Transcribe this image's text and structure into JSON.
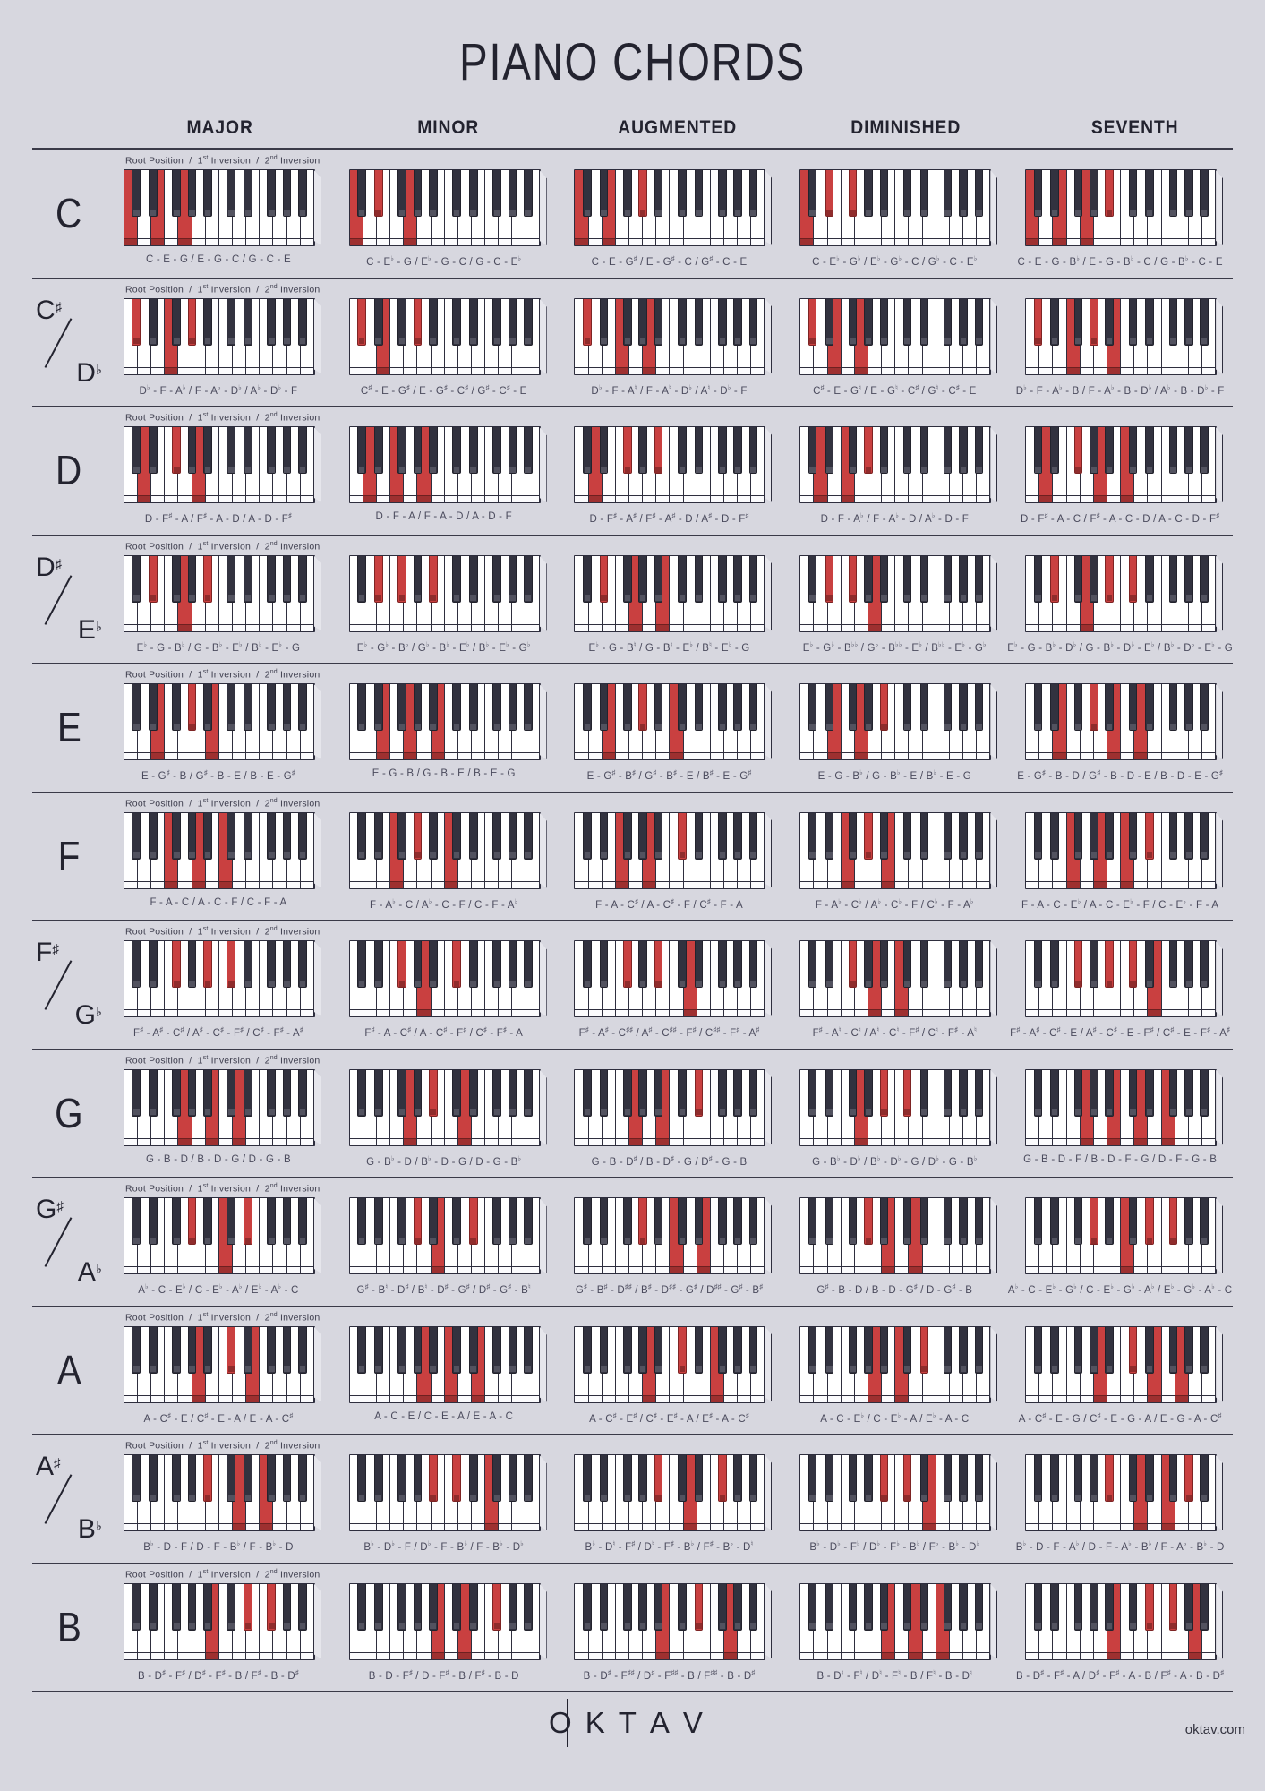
{
  "title": "PIANO CHORDS",
  "columns": [
    "MAJOR",
    "MINOR",
    "AUGMENTED",
    "DIMINISHED",
    "SEVENTH"
  ],
  "inversion_legend": [
    "Root Position",
    "1st Inversion",
    "2nd Inversion"
  ],
  "footer": {
    "logo": "OKTAV",
    "site": "oktav.com"
  },
  "colors": {
    "background": "#d7d7df",
    "ink": "#2d2d3c",
    "key_red": "#c94040",
    "key_red_dark": "#9e3030",
    "black_key": "#32323f",
    "label_text": "#4a4a5c"
  },
  "keyboard": {
    "white_keys": 14,
    "start_note": "C",
    "octaves": 2
  },
  "rows": [
    {
      "id": "C",
      "name_top": "C",
      "name_bottom": "",
      "cells": [
        {
          "type": "major",
          "label": "C - E - G / E - G - C / G - C - E",
          "keys": [
            "C1",
            "E1",
            "G1"
          ]
        },
        {
          "type": "minor",
          "label": "C - E♭ - G / E♭ - G - C / G - C - E♭",
          "keys": [
            "C1",
            "D#1",
            "G1"
          ]
        },
        {
          "type": "augmented",
          "label": "C - E - G♯ / E - G♯ - C / G♯ - C - E",
          "keys": [
            "C1",
            "E1",
            "G#1"
          ]
        },
        {
          "type": "diminished",
          "label": "C - E♭ - G♭ / E♭ - G♭ - C / G♭ - C - E♭",
          "keys": [
            "C1",
            "D#1",
            "F#1"
          ]
        },
        {
          "type": "seventh",
          "label": "C - E - G - B♭ / E - G - B♭ - C / G - B♭ - C - E",
          "keys": [
            "C1",
            "E1",
            "G1",
            "A#1"
          ]
        }
      ]
    },
    {
      "id": "Csharp-Dflat",
      "name_top": "C♯",
      "name_bottom": "D♭",
      "cells": [
        {
          "type": "major",
          "label": "D♭ - F - A♭ / F - A♭ - D♭ / A♭ - D♭ - F",
          "keys": [
            "C#1",
            "F1",
            "G#1"
          ]
        },
        {
          "type": "minor",
          "label": "C♯ - E - G♯ / E - G♯ - C♯ / G♯ - C♯ - E",
          "keys": [
            "C#1",
            "E1",
            "G#1"
          ]
        },
        {
          "type": "augmented",
          "label": "D♭ - F - A♮ / F - A♮ - D♭ / A♮ - D♭ - F",
          "keys": [
            "C#1",
            "F1",
            "A1"
          ]
        },
        {
          "type": "diminished",
          "label": "C♯ - E - G♮ / E - G♮ - C♯ / G♮ - C♯ - E",
          "keys": [
            "C#1",
            "E1",
            "G1"
          ]
        },
        {
          "type": "seventh",
          "label": "D♭ - F - A♭ - B / F - A♭ - B - D♭ / A♭ - B - D♭ - F",
          "keys": [
            "C#1",
            "F1",
            "G#1",
            "B1"
          ]
        }
      ]
    },
    {
      "id": "D",
      "name_top": "D",
      "name_bottom": "",
      "cells": [
        {
          "type": "major",
          "label": "D - F♯ - A / F♯ - A - D / A - D - F♯",
          "keys": [
            "D1",
            "F#1",
            "A1"
          ]
        },
        {
          "type": "minor",
          "label": "D - F - A / F - A - D / A - D - F",
          "keys": [
            "D1",
            "F1",
            "A1"
          ]
        },
        {
          "type": "augmented",
          "label": "D - F♯ - A♯ / F♯ - A♯ - D / A♯ - D - F♯",
          "keys": [
            "D1",
            "F#1",
            "A#1"
          ]
        },
        {
          "type": "diminished",
          "label": "D - F - A♭ / F - A♭ - D / A♭ - D - F",
          "keys": [
            "D1",
            "F1",
            "G#1"
          ]
        },
        {
          "type": "seventh",
          "label": "D - F♯ - A - C / F♯ - A - C - D / A - C - D - F♯",
          "keys": [
            "D1",
            "F#1",
            "A1",
            "C2"
          ]
        }
      ]
    },
    {
      "id": "Dsharp-Eflat",
      "name_top": "D♯",
      "name_bottom": "E♭",
      "cells": [
        {
          "type": "major",
          "label": "E♭ - G - B♭ / G - B♭ - E♭ / B♭ - E♭ - G",
          "keys": [
            "D#1",
            "G1",
            "A#1"
          ]
        },
        {
          "type": "minor",
          "label": "E♭ - G♭ - B♭ / G♭ - B♭ - E♭ / B♭ - E♭ - G♭",
          "keys": [
            "D#1",
            "F#1",
            "A#1"
          ]
        },
        {
          "type": "augmented",
          "label": "E♭ - G - B♮ / G - B♮ - E♭ / B♮ - E♭ - G",
          "keys": [
            "D#1",
            "G1",
            "B1"
          ]
        },
        {
          "type": "diminished",
          "label": "E♭ - G♭ - B♭♭ / G♭ - B♭♭ - E♭ / B♭♭ - E♭ - G♭",
          "keys": [
            "D#1",
            "F#1",
            "A1"
          ]
        },
        {
          "type": "seventh",
          "label": "E♭ - G - B♭ - D♭ / G - B♭ - D♭ - E♭ / B♭ - D♭ - E♭ - G",
          "keys": [
            "D#1",
            "G1",
            "A#1",
            "C#2"
          ]
        }
      ]
    },
    {
      "id": "E",
      "name_top": "E",
      "name_bottom": "",
      "cells": [
        {
          "type": "major",
          "label": "E - G♯ - B / G♯ - B - E / B - E - G♯",
          "keys": [
            "E1",
            "G#1",
            "B1"
          ]
        },
        {
          "type": "minor",
          "label": "E - G - B / G - B - E / B - E - G",
          "keys": [
            "E1",
            "G1",
            "B1"
          ]
        },
        {
          "type": "augmented",
          "label": "E - G♯ - B♯ / G♯ - B♯ - E / B♯ - E - G♯",
          "keys": [
            "E1",
            "G#1",
            "C2"
          ]
        },
        {
          "type": "diminished",
          "label": "E - G - B♭ / G - B♭ - E / B♭ - E - G",
          "keys": [
            "E1",
            "G1",
            "A#1"
          ]
        },
        {
          "type": "seventh",
          "label": "E - G♯ - B - D / G♯ - B - D - E / B - D - E - G♯",
          "keys": [
            "E1",
            "G#1",
            "B1",
            "D2"
          ]
        }
      ]
    },
    {
      "id": "F",
      "name_top": "F",
      "name_bottom": "",
      "cells": [
        {
          "type": "major",
          "label": "F - A - C / A - C - F / C - F - A",
          "keys": [
            "F1",
            "A1",
            "C2"
          ]
        },
        {
          "type": "minor",
          "label": "F - A♭ - C / A♭ - C - F / C - F - A♭",
          "keys": [
            "F1",
            "G#1",
            "C2"
          ]
        },
        {
          "type": "augmented",
          "label": "F - A - C♯ / A - C♯ - F / C♯ - F - A",
          "keys": [
            "F1",
            "A1",
            "C#2"
          ]
        },
        {
          "type": "diminished",
          "label": "F - A♭ - C♭ / A♭ - C♭ - F / C♭ - F - A♭",
          "keys": [
            "F1",
            "G#1",
            "B1"
          ]
        },
        {
          "type": "seventh",
          "label": "F - A - C - E♭ / A - C - E♭ - F / C - E♭ - F - A",
          "keys": [
            "F1",
            "A1",
            "C2",
            "D#2"
          ]
        }
      ]
    },
    {
      "id": "Fsharp-Gflat",
      "name_top": "F♯",
      "name_bottom": "G♭",
      "cells": [
        {
          "type": "major",
          "label": "F♯ - A♯ - C♯ / A♯ - C♯ - F♯ / C♯ - F♯ - A♯",
          "keys": [
            "F#1",
            "A#1",
            "C#2"
          ]
        },
        {
          "type": "minor",
          "label": "F♯ - A - C♯ / A - C♯ - F♯ / C♯ - F♯ - A",
          "keys": [
            "F#1",
            "A1",
            "C#2"
          ]
        },
        {
          "type": "augmented",
          "label": "F♯ - A♯ - C♯♯ / A♯ - C♯♯ - F♯ / C♯♯ - F♯ - A♯",
          "keys": [
            "F#1",
            "A#1",
            "D2"
          ]
        },
        {
          "type": "diminished",
          "label": "F♯ - A♮ - C♮ / A♮ - C♮ - F♯ / C♮ - F♯ - A♮",
          "keys": [
            "F#1",
            "A1",
            "C2"
          ]
        },
        {
          "type": "seventh",
          "label": "F♯ - A♯ - C♯ - E / A♯ - C♯ - E - F♯ / C♯ - E - F♯ - A♯",
          "keys": [
            "F#1",
            "A#1",
            "C#2",
            "E2"
          ]
        }
      ]
    },
    {
      "id": "G",
      "name_top": "G",
      "name_bottom": "",
      "cells": [
        {
          "type": "major",
          "label": "G - B - D / B - D - G / D - G - B",
          "keys": [
            "G1",
            "B1",
            "D2"
          ]
        },
        {
          "type": "minor",
          "label": "G - B♭ - D / B♭ - D - G / D - G - B♭",
          "keys": [
            "G1",
            "A#1",
            "D2"
          ]
        },
        {
          "type": "augmented",
          "label": "G - B - D♯ / B - D♯ - G / D♯ - G - B",
          "keys": [
            "G1",
            "B1",
            "D#2"
          ]
        },
        {
          "type": "diminished",
          "label": "G - B♭ - D♭ / B♭ - D♭ - G / D♭ - G - B♭",
          "keys": [
            "G1",
            "A#1",
            "C#2"
          ]
        },
        {
          "type": "seventh",
          "label": "G - B - D - F / B - D - F - G / D - F - G - B",
          "keys": [
            "G1",
            "B1",
            "D2",
            "F2"
          ]
        }
      ]
    },
    {
      "id": "Gsharp-Aflat",
      "name_top": "G♯",
      "name_bottom": "A♭",
      "cells": [
        {
          "type": "major",
          "label": "A♭ - C - E♭ / C - E♭ - A♭ / E♭ - A♭ - C",
          "keys": [
            "G#1",
            "C2",
            "D#2"
          ]
        },
        {
          "type": "minor",
          "label": "G♯ - B♮ - D♯ / B♮ - D♯ - G♯ / D♯ - G♯ - B♮",
          "keys": [
            "G#1",
            "B1",
            "D#2"
          ]
        },
        {
          "type": "augmented",
          "label": "G♯ - B♯ - D♯♯ / B♯ - D♯♯ - G♯ / D♯♯ - G♯ - B♯",
          "keys": [
            "G#1",
            "C2",
            "E2"
          ]
        },
        {
          "type": "diminished",
          "label": "G♯ - B - D / B - D - G♯ / D - G♯ - B",
          "keys": [
            "G#1",
            "B1",
            "D2"
          ]
        },
        {
          "type": "seventh",
          "label": "A♭ - C - E♭ - G♭ / C - E♭ - G♭ - A♭ / E♭ - G♭ - A♭ - C",
          "keys": [
            "G#1",
            "C2",
            "D#2",
            "F#2"
          ]
        }
      ]
    },
    {
      "id": "A",
      "name_top": "A",
      "name_bottom": "",
      "cells": [
        {
          "type": "major",
          "label": "A - C♯ - E / C♯ - E - A / E - A - C♯",
          "keys": [
            "A1",
            "C#2",
            "E2"
          ]
        },
        {
          "type": "minor",
          "label": "A - C - E / C - E - A / E - A - C",
          "keys": [
            "A1",
            "C2",
            "E2"
          ]
        },
        {
          "type": "augmented",
          "label": "A - C♯ - E♯ / C♯ - E♯ - A / E♯ - A - C♯",
          "keys": [
            "A1",
            "C#2",
            "F2"
          ]
        },
        {
          "type": "diminished",
          "label": "A - C - E♭ / C - E♭ - A / E♭ - A - C",
          "keys": [
            "A1",
            "C2",
            "D#2"
          ]
        },
        {
          "type": "seventh",
          "label": "A - C♯ - E - G / C♯ - E - G - A / E - G - A - C♯",
          "keys": [
            "A1",
            "C#2",
            "E2",
            "G2"
          ]
        }
      ]
    },
    {
      "id": "Asharp-Bflat",
      "name_top": "A♯",
      "name_bottom": "B♭",
      "cells": [
        {
          "type": "major",
          "label": "B♭ - D - F / D - F - B♭ / F - B♭ - D",
          "keys": [
            "A#1",
            "D2",
            "F2"
          ]
        },
        {
          "type": "minor",
          "label": "B♭ - D♭ - F / D♭ - F - B♭ / F - B♭ - D♭",
          "keys": [
            "A#1",
            "C#2",
            "F2"
          ]
        },
        {
          "type": "augmented",
          "label": "B♭ - D♮ - F♯ / D♮ - F♯ - B♭ / F♯ - B♭ - D♮",
          "keys": [
            "A#1",
            "D2",
            "F#2"
          ]
        },
        {
          "type": "diminished",
          "label": "B♭ - D♭ - F♭ / D♭ - F♭ - B♭ / F♭ - B♭ - D♭",
          "keys": [
            "A#1",
            "C#2",
            "E2"
          ]
        },
        {
          "type": "seventh",
          "label": "B♭ - D - F - A♭ / D - F - A♭ - B♭ / F - A♭ - B♭ - D",
          "keys": [
            "A#1",
            "D2",
            "F2",
            "G#2"
          ]
        }
      ]
    },
    {
      "id": "B",
      "name_top": "B",
      "name_bottom": "",
      "cells": [
        {
          "type": "major",
          "label": "B - D♯ - F♯ / D♯ - F♯ - B / F♯ - B - D♯",
          "keys": [
            "B1",
            "D#2",
            "F#2"
          ]
        },
        {
          "type": "minor",
          "label": "B - D - F♯ / D - F♯ - B / F♯ - B - D",
          "keys": [
            "B1",
            "D2",
            "F#2"
          ]
        },
        {
          "type": "augmented",
          "label": "B - D♯ - F♯♯ / D♯ - F♯♯ - B / F♯♯ - B - D♯",
          "keys": [
            "B1",
            "D#2",
            "G2"
          ]
        },
        {
          "type": "diminished",
          "label": "B - D♮ - F♮ / D♮ - F♮ - B / F♮ - B - D♮",
          "keys": [
            "B1",
            "D2",
            "F2"
          ]
        },
        {
          "type": "seventh",
          "label": "B - D♯ - F♯ - A / D♯ - F♯ - A - B / F♯ - A - B - D♯",
          "keys": [
            "B1",
            "D#2",
            "F#2",
            "A2"
          ]
        }
      ]
    }
  ]
}
